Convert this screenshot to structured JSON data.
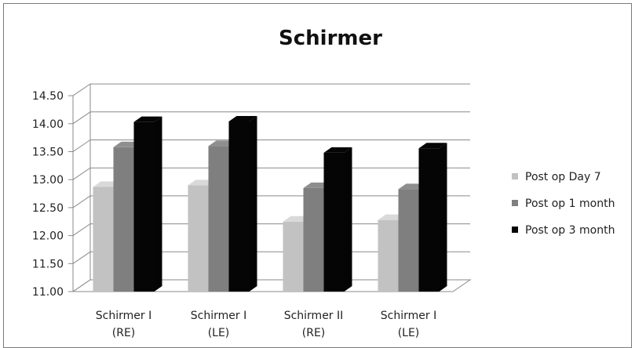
{
  "chart_data": {
    "type": "bar",
    "title": "Schirmer",
    "categories": [
      [
        "Schirmer I",
        "(RE)"
      ],
      [
        "Schirmer I",
        "(LE)"
      ],
      [
        "Schirmer II",
        "(RE)"
      ],
      [
        "Schirmer I",
        "(LE)"
      ]
    ],
    "series": [
      {
        "name": "Post op Day 7",
        "color": "#c2c2c2",
        "values": [
          12.87,
          12.9,
          12.25,
          12.28
        ]
      },
      {
        "name": "Post op 1 month",
        "color": "#7f7f7f",
        "values": [
          13.58,
          13.6,
          12.85,
          12.83
        ]
      },
      {
        "name": "Post op 3 month",
        "color": "#050505",
        "values": [
          14.03,
          14.04,
          13.48,
          13.56
        ]
      }
    ],
    "yticks": [
      "11.00",
      "11.50",
      "12.00",
      "12.50",
      "13.00",
      "13.50",
      "14.00",
      "14.50"
    ],
    "ylim": [
      11.0,
      14.5
    ],
    "grid": true,
    "legend_position": "right",
    "style": "3d-clustered-column"
  }
}
